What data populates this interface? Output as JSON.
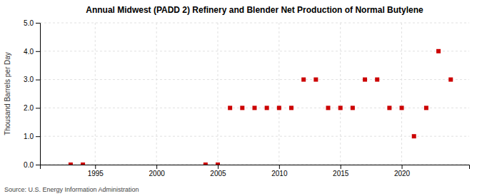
{
  "chart_data": {
    "type": "scatter",
    "title": "Annual Midwest (PADD 2) Refinery and Blender Net Production of Normal Butylene",
    "ylabel": "Thousand Barrels per Day",
    "source": "Source: U.S. Energy Information Administration",
    "color": "#cc0000",
    "marker": "square",
    "grid": true,
    "x": [
      1993,
      1994,
      2004,
      2005,
      2006,
      2007,
      2008,
      2009,
      2010,
      2011,
      2012,
      2013,
      2014,
      2015,
      2016,
      2017,
      2018,
      2019,
      2020,
      2021,
      2022,
      2023,
      2024
    ],
    "values": [
      0.0,
      0.0,
      0.0,
      0.0,
      2.0,
      2.0,
      2.0,
      2.0,
      2.0,
      2.0,
      3.0,
      3.0,
      2.0,
      2.0,
      2.0,
      3.0,
      3.0,
      2.0,
      2.0,
      1.0,
      2.0,
      4.0,
      3.0
    ],
    "xlim": [
      1990.5,
      2025.5
    ],
    "xticks": [
      1995,
      2000,
      2005,
      2010,
      2015,
      2020
    ],
    "ylim": [
      0.0,
      5.0
    ],
    "yticks": [
      {
        "value": 0.0,
        "label": "0.0"
      },
      {
        "value": 1.0,
        "label": "1.0"
      },
      {
        "value": 2.0,
        "label": "2.0"
      },
      {
        "value": 3.0,
        "label": "3.0"
      },
      {
        "value": 4.0,
        "label": "4.0"
      },
      {
        "value": 5.0,
        "label": "5.0"
      }
    ]
  }
}
